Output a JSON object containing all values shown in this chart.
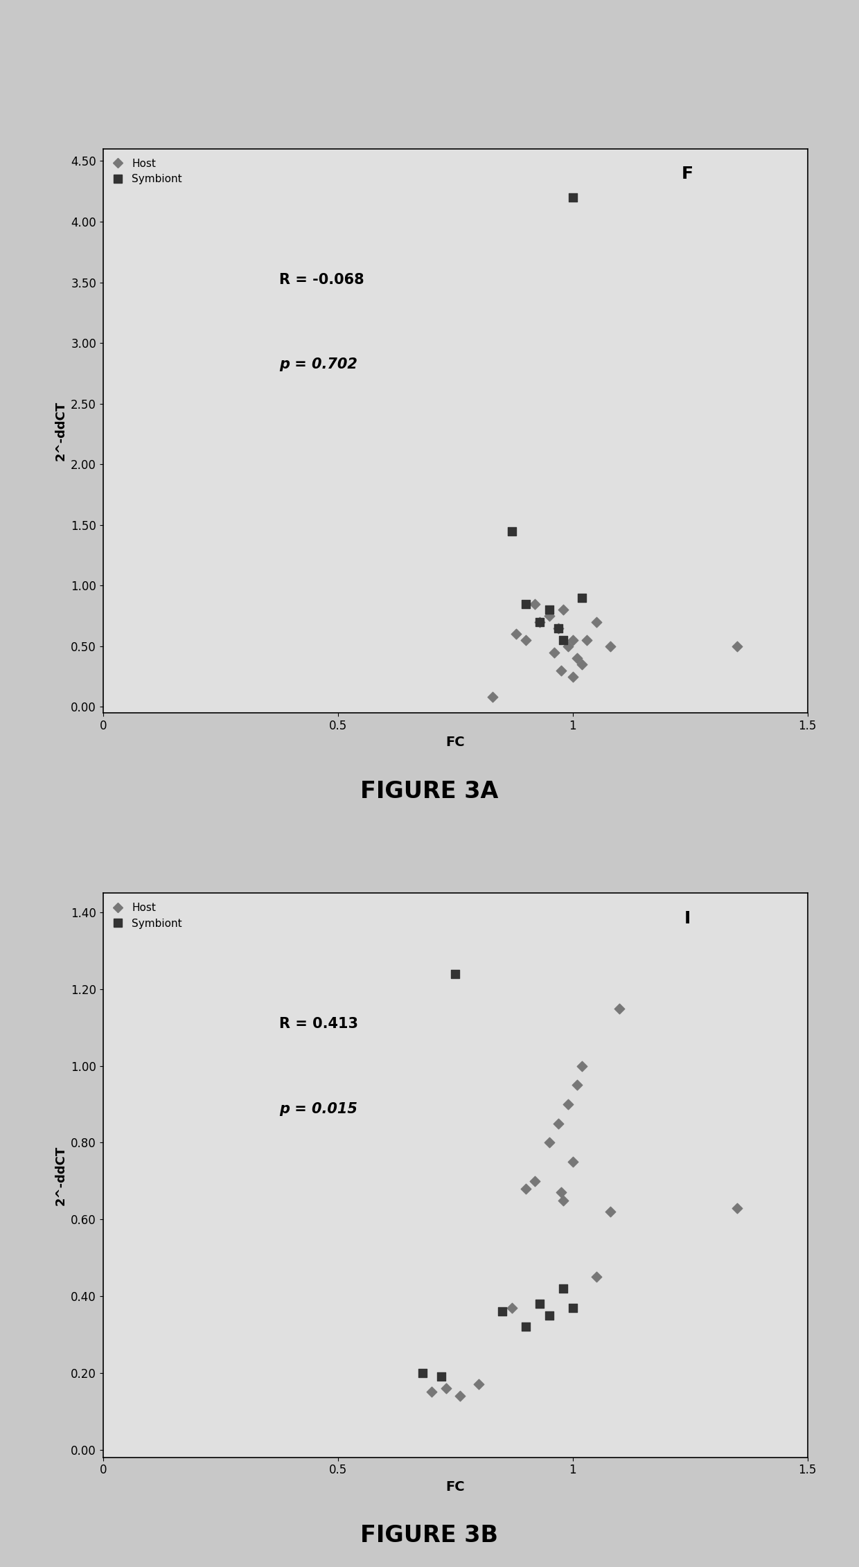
{
  "fig_width": 12.4,
  "fig_height": 22.62,
  "background_color": "#c8c8c8",
  "plot_bg": "#e0e0e0",
  "panel_A": {
    "panel_label": "F",
    "xlabel": "FC",
    "ylabel": "2^-ddCT",
    "xlim": [
      0,
      1.5
    ],
    "ylim": [
      -0.05,
      4.6
    ],
    "xticks": [
      0,
      0.5,
      1.0,
      1.5
    ],
    "xtick_labels": [
      "0",
      "0.5",
      "1",
      "1.5"
    ],
    "yticks": [
      0.0,
      0.5,
      1.0,
      1.5,
      2.0,
      2.5,
      3.0,
      3.5,
      4.0,
      4.5
    ],
    "ytick_labels": [
      "0.00",
      "0.50",
      "1.00",
      "1.50",
      "2.00",
      "2.50",
      "3.00",
      "3.50",
      "4.00",
      "4.50"
    ],
    "R_text": "R = -0.068",
    "p_text": "p = 0.702",
    "host_x": [
      0.83,
      0.88,
      0.9,
      0.92,
      0.93,
      0.95,
      0.96,
      0.97,
      0.975,
      0.98,
      0.99,
      1.0,
      1.0,
      1.01,
      1.02,
      1.03,
      1.05,
      1.08,
      1.35
    ],
    "host_y": [
      0.08,
      0.6,
      0.55,
      0.85,
      0.7,
      0.75,
      0.45,
      0.65,
      0.3,
      0.8,
      0.5,
      0.55,
      0.25,
      0.4,
      0.35,
      0.55,
      0.7,
      0.5,
      0.5
    ],
    "symbiont_x": [
      0.87,
      0.9,
      0.93,
      0.95,
      0.97,
      0.98,
      1.0,
      1.02
    ],
    "symbiont_y": [
      1.45,
      0.85,
      0.7,
      0.8,
      0.65,
      0.55,
      4.2,
      0.9
    ],
    "caption": "FIGURE 3A"
  },
  "panel_B": {
    "panel_label": "I",
    "xlabel": "FC",
    "ylabel": "2^-ddCT",
    "xlim": [
      0,
      1.5
    ],
    "ylim": [
      -0.02,
      1.45
    ],
    "xticks": [
      0,
      0.5,
      1.0,
      1.5
    ],
    "xtick_labels": [
      "0",
      "0.5",
      "1",
      "1.5"
    ],
    "yticks": [
      0.0,
      0.2,
      0.4,
      0.6,
      0.8,
      1.0,
      1.2,
      1.4
    ],
    "ytick_labels": [
      "0.00",
      "0.20",
      "0.40",
      "0.60",
      "0.80",
      "1.00",
      "1.20",
      "1.40"
    ],
    "R_text": "R = 0.413",
    "p_text": "p = 0.015",
    "host_x": [
      0.7,
      0.73,
      0.76,
      0.8,
      0.87,
      0.9,
      0.92,
      0.95,
      0.97,
      0.975,
      0.98,
      0.99,
      1.0,
      1.01,
      1.02,
      1.05,
      1.08,
      1.1,
      1.35
    ],
    "host_y": [
      0.15,
      0.16,
      0.14,
      0.17,
      0.37,
      0.68,
      0.7,
      0.8,
      0.85,
      0.67,
      0.65,
      0.9,
      0.75,
      0.95,
      1.0,
      0.45,
      0.62,
      1.15,
      0.63
    ],
    "symbiont_x": [
      0.68,
      0.72,
      0.75,
      0.85,
      0.9,
      0.93,
      0.95,
      0.98,
      1.0
    ],
    "symbiont_y": [
      0.2,
      0.19,
      1.24,
      0.36,
      0.32,
      0.38,
      0.35,
      0.42,
      0.37
    ],
    "caption": "FIGURE 3B"
  },
  "host_color": "#777777",
  "symbiont_color": "#333333",
  "host_marker": "D",
  "symbiont_marker": "s",
  "host_marker_size": 55,
  "symbiont_marker_size": 70
}
